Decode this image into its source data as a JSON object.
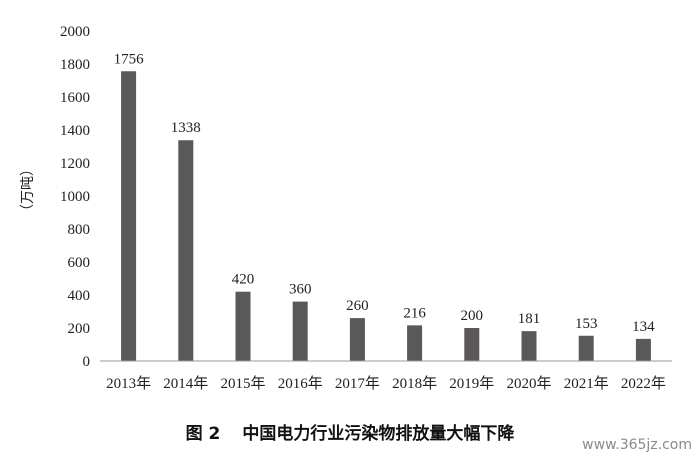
{
  "chart_data": {
    "type": "bar",
    "categories": [
      "2013年",
      "2014年",
      "2015年",
      "2016年",
      "2017年",
      "2018年",
      "2019年",
      "2020年",
      "2021年",
      "2022年"
    ],
    "values": [
      1756,
      1338,
      420,
      360,
      260,
      216,
      200,
      181,
      153,
      134
    ],
    "data_labels": [
      "1756",
      "1338",
      "420",
      "360",
      "260",
      "216",
      "200",
      "181",
      "153",
      "134"
    ],
    "ylabel": "（万吨）",
    "ylim": [
      0,
      2000
    ],
    "yticks": [
      0,
      200,
      400,
      600,
      800,
      1000,
      1200,
      1400,
      1600,
      1800,
      2000
    ],
    "grid": false,
    "bar_color": "#5b5858"
  },
  "caption": {
    "figure_label": "图 2",
    "title": "中国电力行业污染物排放量大幅下降"
  },
  "watermark": "www.365jz.com"
}
